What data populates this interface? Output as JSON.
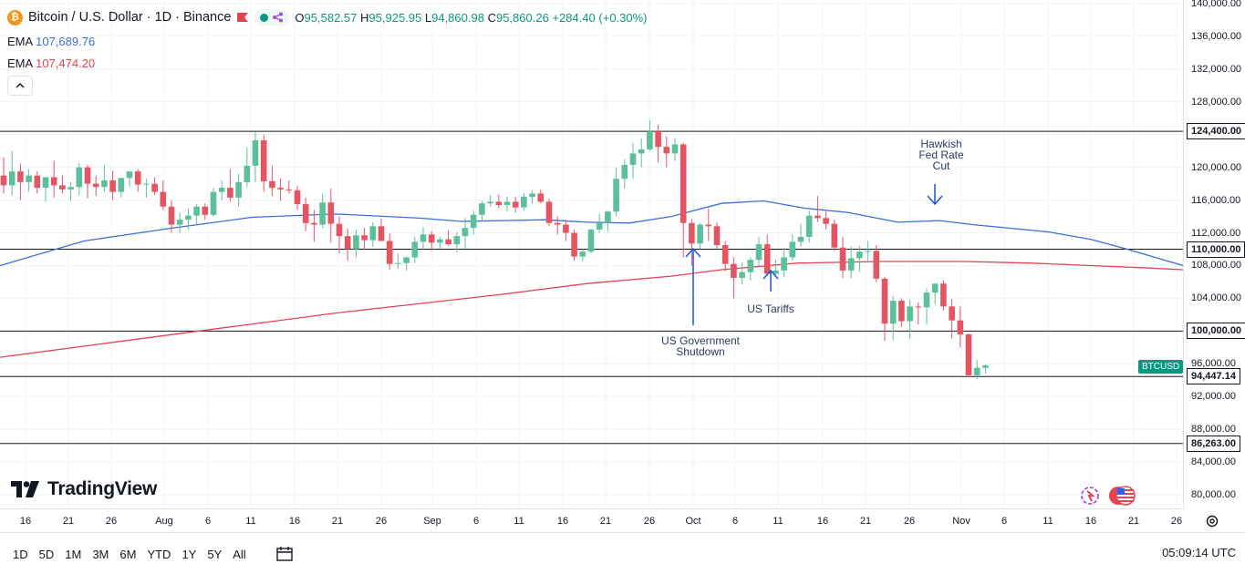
{
  "legend": {
    "title": "Bitcoin / U.S. Dollar · 1D · Binance",
    "open_label": "O",
    "open": "95,582.57",
    "high_label": "H",
    "high": "95,925.95",
    "low_label": "L",
    "low": "94,860.98",
    "close_label": "C",
    "close": "95,860.26",
    "change": "+284.40 (+0.30%)",
    "ema1_label": "EMA",
    "ema1_value": "107,689.76",
    "ema2_label": "EMA",
    "ema2_value": "107,474.20"
  },
  "brand": "TradingView",
  "symbol_tag": "BTCUSD",
  "colors": {
    "up": "#26a69a",
    "up_body": "#5cbf9b",
    "down": "#e55463",
    "ema_fast": "#3a6fd8",
    "ema_slow": "#e5434f",
    "annotation": "#1a56db"
  },
  "chart_data": {
    "type": "candlestick",
    "title": "Bitcoin / U.S. Dollar · 1D · Binance",
    "ylim": [
      78000,
      142000
    ],
    "y_ticks": [
      "80,000.00",
      "84,000.00",
      "88,000.00",
      "92,000.00",
      "96,000.00",
      "100,000.00",
      "104,000.00",
      "108,000.00",
      "112,000.00",
      "116,000.00",
      "120,000.00",
      "124,000.00",
      "128,000.00",
      "132,000.00",
      "136,000.00",
      "140,000.00"
    ],
    "x_ticks": [
      "16",
      "21",
      "26",
      "Aug",
      "6",
      "11",
      "16",
      "21",
      "26",
      "Sep",
      "6",
      "11",
      "16",
      "21",
      "26",
      "Oct",
      "6",
      "11",
      "16",
      "21",
      "26",
      "Nov",
      "6",
      "11",
      "16",
      "21",
      "26"
    ],
    "candles": [
      [
        119000,
        121200,
        116800,
        117800
      ],
      [
        117800,
        122000,
        116500,
        119500
      ],
      [
        119500,
        120500,
        116000,
        118200
      ],
      [
        118200,
        119800,
        117000,
        119000
      ],
      [
        119000,
        119500,
        116800,
        117500
      ],
      [
        117500,
        118300,
        115800,
        118800
      ],
      [
        118800,
        120800,
        116300,
        117800
      ],
      [
        117800,
        119000,
        116800,
        117300
      ],
      [
        117300,
        118200,
        115900,
        117600
      ],
      [
        117600,
        120500,
        116600,
        120000
      ],
      [
        120000,
        120300,
        116200,
        118000
      ],
      [
        118000,
        119000,
        116500,
        117600
      ],
      [
        117600,
        120300,
        117000,
        118400
      ],
      [
        118400,
        119600,
        116000,
        117000
      ],
      [
        117000,
        118600,
        116300,
        118700
      ],
      [
        118700,
        119200,
        117600,
        119500
      ],
      [
        119500,
        119800,
        117000,
        117900
      ],
      [
        117900,
        118600,
        116300,
        118000
      ],
      [
        118000,
        118800,
        116600,
        117000
      ],
      [
        117000,
        118400,
        114800,
        115200
      ],
      [
        115200,
        116000,
        112000,
        113000
      ],
      [
        113000,
        114500,
        112000,
        113600
      ],
      [
        113600,
        115000,
        112400,
        114100
      ],
      [
        114100,
        115500,
        113000,
        115200
      ],
      [
        115200,
        115600,
        113600,
        114200
      ],
      [
        114200,
        117500,
        114000,
        117000
      ],
      [
        117000,
        118400,
        116000,
        117500
      ],
      [
        117500,
        119800,
        115800,
        116300
      ],
      [
        116300,
        119200,
        115200,
        118200
      ],
      [
        118200,
        122400,
        117600,
        120200
      ],
      [
        120200,
        124300,
        118200,
        123300
      ],
      [
        123300,
        124000,
        117000,
        118300
      ],
      [
        118300,
        120200,
        116500,
        117500
      ],
      [
        117500,
        118700,
        115900,
        117300
      ],
      [
        117300,
        118400,
        116800,
        117200
      ],
      [
        117200,
        117700,
        114800,
        115500
      ],
      [
        115500,
        116300,
        112200,
        113200
      ],
      [
        113200,
        114800,
        110900,
        113000
      ],
      [
        113000,
        116700,
        112600,
        115700
      ],
      [
        115700,
        117400,
        110800,
        113100
      ],
      [
        113100,
        114000,
        109500,
        111600
      ],
      [
        111600,
        112500,
        108600,
        110000
      ],
      [
        110000,
        112400,
        109000,
        111700
      ],
      [
        111700,
        112600,
        110000,
        111100
      ],
      [
        111100,
        113300,
        110300,
        112800
      ],
      [
        112800,
        113700,
        111300,
        111000
      ],
      [
        111000,
        111900,
        107500,
        108200
      ],
      [
        108200,
        109500,
        107600,
        108300
      ],
      [
        108300,
        109100,
        107400,
        109000
      ],
      [
        109000,
        111500,
        108300,
        110900
      ],
      [
        110900,
        112700,
        110000,
        111800
      ],
      [
        111800,
        112200,
        109800,
        110800
      ],
      [
        110800,
        111500,
        110000,
        111200
      ],
      [
        111200,
        112300,
        110400,
        110600
      ],
      [
        110600,
        112100,
        109600,
        111600
      ],
      [
        111600,
        113800,
        110000,
        112600
      ],
      [
        112600,
        114700,
        111800,
        114200
      ],
      [
        114200,
        115900,
        113500,
        115600
      ],
      [
        115600,
        116600,
        115200,
        115800
      ],
      [
        115800,
        116700,
        115000,
        115400
      ],
      [
        115400,
        116400,
        114600,
        115800
      ],
      [
        115800,
        116400,
        114500,
        115100
      ],
      [
        115100,
        116900,
        114700,
        116400
      ],
      [
        116400,
        117200,
        115600,
        116800
      ],
      [
        116800,
        117300,
        115600,
        115800
      ],
      [
        115800,
        116200,
        112800,
        113200
      ],
      [
        113200,
        114000,
        111800,
        113000
      ],
      [
        113000,
        113600,
        111000,
        112000
      ],
      [
        112000,
        112400,
        108600,
        109100
      ],
      [
        109100,
        110000,
        108500,
        109700
      ],
      [
        109700,
        112500,
        109500,
        112400
      ],
      [
        112400,
        114300,
        112000,
        113200
      ],
      [
        113200,
        114700,
        112200,
        114600
      ],
      [
        114600,
        120000,
        114000,
        118600
      ],
      [
        118600,
        121000,
        117400,
        120300
      ],
      [
        120300,
        123000,
        118600,
        121700
      ],
      [
        121700,
        123500,
        120000,
        122200
      ],
      [
        122200,
        125800,
        122000,
        124400
      ],
      [
        124400,
        125200,
        120600,
        122500
      ],
      [
        122500,
        123800,
        120000,
        121700
      ],
      [
        121700,
        123600,
        120800,
        122800
      ],
      [
        122800,
        123000,
        109000,
        113200
      ],
      [
        113200,
        113700,
        108000,
        110700
      ],
      [
        110700,
        113200,
        110000,
        113000
      ],
      [
        113000,
        115000,
        111000,
        112800
      ],
      [
        112800,
        113300,
        110000,
        110500
      ],
      [
        110500,
        111000,
        107300,
        108200
      ],
      [
        108200,
        109000,
        104000,
        106500
      ],
      [
        106500,
        108400,
        105700,
        107200
      ],
      [
        107200,
        109000,
        106200,
        108700
      ],
      [
        108700,
        111500,
        108000,
        110600
      ],
      [
        110600,
        111800,
        106700,
        107000
      ],
      [
        107000,
        108700,
        106800,
        107400
      ],
      [
        107400,
        110200,
        106600,
        109000
      ],
      [
        109000,
        111800,
        108600,
        110900
      ],
      [
        110900,
        113100,
        110300,
        111500
      ],
      [
        111500,
        114700,
        110800,
        114100
      ],
      [
        114100,
        116500,
        113300,
        113800
      ],
      [
        113800,
        114600,
        112400,
        113100
      ],
      [
        113100,
        113600,
        109800,
        110200
      ],
      [
        110200,
        111500,
        106500,
        107400
      ],
      [
        107400,
        110300,
        106500,
        108900
      ],
      [
        108900,
        110400,
        107300,
        109700
      ],
      [
        109700,
        111000,
        108600,
        109800
      ],
      [
        109800,
        110500,
        106000,
        106400
      ],
      [
        106400,
        106600,
        98800,
        100900
      ],
      [
        100900,
        104300,
        98900,
        103700
      ],
      [
        103700,
        104000,
        100500,
        101200
      ],
      [
        101200,
        103800,
        99100,
        103000
      ],
      [
        103000,
        103500,
        100800,
        102900
      ],
      [
        102900,
        105200,
        100800,
        104700
      ],
      [
        104700,
        105600,
        103300,
        105800
      ],
      [
        105800,
        106200,
        102500,
        103000
      ],
      [
        103000,
        103900,
        99100,
        101300
      ],
      [
        101300,
        103000,
        98000,
        99600
      ],
      [
        99600,
        99700,
        94400,
        94600
      ],
      [
        94600,
        96500,
        94100,
        95500
      ],
      [
        95500,
        95900,
        94800,
        95800
      ]
    ],
    "ema_fast": [
      [
        0,
        108000
      ],
      [
        10,
        111000
      ],
      [
        20,
        112500
      ],
      [
        30,
        113900
      ],
      [
        40,
        114300
      ],
      [
        50,
        113800
      ],
      [
        55,
        113400
      ],
      [
        60,
        113500
      ],
      [
        65,
        113600
      ],
      [
        70,
        113300
      ],
      [
        75,
        113200
      ],
      [
        80,
        114000
      ],
      [
        86,
        115600
      ],
      [
        91,
        115900
      ],
      [
        96,
        115000
      ],
      [
        101,
        114500
      ],
      [
        107,
        113300
      ],
      [
        112,
        113500
      ],
      [
        116,
        113000
      ],
      [
        120,
        112600
      ],
      [
        125,
        112100
      ],
      [
        130,
        111200
      ],
      [
        134,
        110100
      ],
      [
        138,
        108900
      ],
      [
        141,
        108000
      ]
    ],
    "ema_slow": [
      [
        0,
        96800
      ],
      [
        20,
        99500
      ],
      [
        40,
        102200
      ],
      [
        60,
        104500
      ],
      [
        70,
        105800
      ],
      [
        80,
        106700
      ],
      [
        86,
        107500
      ],
      [
        95,
        108300
      ],
      [
        105,
        108500
      ],
      [
        115,
        108500
      ],
      [
        123,
        108300
      ],
      [
        130,
        108000
      ],
      [
        137,
        107700
      ],
      [
        141,
        107500
      ]
    ],
    "horizontal_levels": [
      {
        "value": 124400,
        "label": "124,400.00"
      },
      {
        "value": 110000,
        "label": "110,000.00"
      },
      {
        "value": 100000,
        "label": "100,000.00"
      },
      {
        "value": 94447.14,
        "label": "94,447.14"
      },
      {
        "value": 86263,
        "label": "86,263.00"
      }
    ],
    "annotations": [
      {
        "text": "US Government\nShutdown"
      },
      {
        "text": "US Tariffs"
      },
      {
        "text": "Hawkish\nFed Rate\nCut"
      }
    ]
  },
  "periods": [
    "1D",
    "5D",
    "1M",
    "3M",
    "6M",
    "YTD",
    "1Y",
    "5Y",
    "All"
  ],
  "clock": "05:09:14 UTC"
}
